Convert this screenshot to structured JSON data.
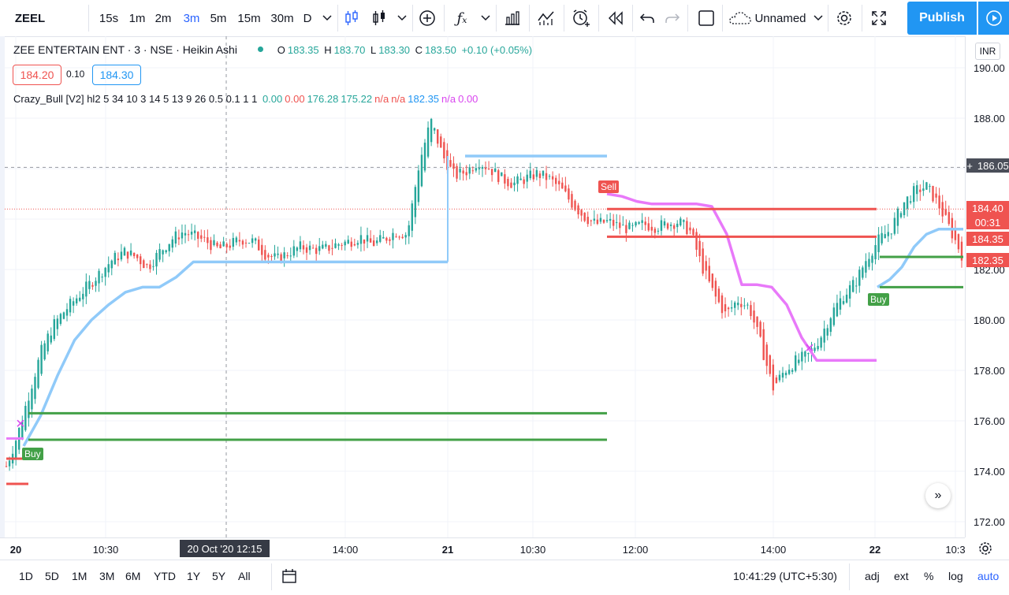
{
  "toolbar": {
    "symbol": "ZEEL",
    "intervals": [
      "15s",
      "1m",
      "2m",
      "3m",
      "5m",
      "15m",
      "30m",
      "D"
    ],
    "active_interval": "3m",
    "layout_name": "Unnamed",
    "publish_label": "Publish",
    "icons": [
      "chevron-down-icon",
      "candles-icon",
      "bar-chart-icon",
      "chevron-down-icon",
      "plus-circle-icon",
      "fx-icon",
      "chevron-down-icon",
      "compare-icon",
      "indicator-icon",
      "alert-icon",
      "replay-icon",
      "undo-icon",
      "redo-icon",
      "fullscreen-box-icon",
      "cloud-icon",
      "gear-icon",
      "expand-icon",
      "play-icon"
    ]
  },
  "legend": {
    "title": "ZEE ENTERTAIN ENT · 3 · NSE · Heikin Ashi",
    "ohlc": [
      {
        "label": "O",
        "value": "183.35"
      },
      {
        "label": "H",
        "value": "183.70"
      },
      {
        "label": "L",
        "value": "183.30"
      },
      {
        "label": "C",
        "value": "183.50"
      }
    ],
    "change": "+0.10 (+0.05%)",
    "bid": "184.20",
    "spread": "0.10",
    "ask": "184.30"
  },
  "indicator": {
    "name": "Crazy_Bull [V2] hl2 5 34 10 3 14 5 13 9 26 0.5 0.1 1 1",
    "values": [
      {
        "v": "0.00",
        "color": "#26a69a"
      },
      {
        "v": "0.00",
        "color": "#ef5350"
      },
      {
        "v": "176.28",
        "color": "#26a69a"
      },
      {
        "v": "175.22",
        "color": "#26a69a"
      },
      {
        "v": "n/a",
        "color": "#ef5350"
      },
      {
        "v": "n/a",
        "color": "#ef5350"
      },
      {
        "v": "182.35",
        "color": "#2196f3"
      },
      {
        "v": "n/a",
        "color": "#d946ef"
      },
      {
        "v": "0.00",
        "color": "#d946ef"
      }
    ]
  },
  "chart_data": {
    "type": "candlestick",
    "ylim": [
      171.2,
      191.0
    ],
    "yticks": [
      "190.00",
      "188.00",
      "186.00",
      "184.00",
      "182.00",
      "180.00",
      "178.00",
      "176.00",
      "174.00",
      "172.00"
    ],
    "currency": "INR",
    "crosshair_price": "186.05",
    "price_tags": [
      {
        "price": 184.4,
        "label": "184.40",
        "color": "#ef5350"
      },
      {
        "price": 184.12,
        "label": "00:31",
        "color": "#ef5350"
      },
      {
        "price": 183.75,
        "label": "184.35",
        "color": "#ef5350"
      },
      {
        "price": 182.35,
        "label": "182.35",
        "color": "#ef5350"
      }
    ],
    "xticks": [
      {
        "label": "20",
        "bold": true
      },
      {
        "label": "10:30",
        "bold": false
      },
      {
        "label": "14:00",
        "bold": false
      },
      {
        "label": "21",
        "bold": true
      },
      {
        "label": "10:30",
        "bold": false
      },
      {
        "label": "12:00",
        "bold": false
      },
      {
        "label": "14:00",
        "bold": false
      },
      {
        "label": "22",
        "bold": true
      },
      {
        "label": "10:3",
        "bold": false
      }
    ],
    "crosshair_time": "20 Oct '20   12:15",
    "signals": [
      {
        "label": "Buy",
        "color": "#43a047"
      },
      {
        "label": "Sell",
        "color": "#ef5350"
      },
      {
        "label": "Buy",
        "color": "#43a047"
      }
    ],
    "close_path": [
      174.2,
      175.5,
      177.2,
      178.8,
      179.8,
      180.4,
      180.9,
      181.4,
      181.9,
      182.4,
      182.7,
      182.5,
      182.1,
      182.7,
      183.2,
      183.5,
      183.3,
      183.1,
      182.8,
      183.0,
      183.2,
      183.1,
      182.6,
      182.4,
      182.7,
      182.9,
      182.8,
      182.8,
      183.0,
      183.1,
      183.3,
      183.0,
      183.2,
      183.5,
      183.4,
      186.2,
      187.9,
      186.5,
      185.7,
      185.9,
      186.3,
      186.0,
      185.6,
      185.4,
      185.6,
      185.8,
      185.6,
      185.2,
      184.6,
      184.1,
      183.8,
      183.9,
      183.7,
      183.6,
      183.8,
      183.7,
      183.8,
      183.9,
      183.5,
      182.1,
      181.0,
      180.2,
      180.8,
      180.5,
      179.0,
      177.3,
      178.0,
      178.4,
      178.6,
      179.3,
      180.3,
      181.0,
      181.5,
      182.5,
      183.2,
      183.6,
      184.6,
      185.1,
      185.3,
      184.6,
      183.6,
      182.6
    ],
    "series": [
      {
        "name": "",
        "color": "#90caf9",
        "values": [
          175.0,
          176.2,
          177.8,
          179.2,
          180.0,
          180.6,
          181.1,
          181.3,
          181.3,
          181.7,
          182.3,
          182.3,
          182.3,
          182.3,
          182.3,
          182.3,
          182.3,
          182.3,
          182.3,
          182.3,
          182.3,
          182.3,
          182.3,
          182.3,
          182.3,
          182.3,
          186.5,
          186.5,
          186.5,
          186.5,
          186.5,
          186.5,
          186.5
        ]
      },
      {
        "name": "",
        "color": "#e879f9",
        "values": [
          185.0,
          184.9,
          184.7,
          184.6,
          184.6,
          184.6,
          184.6,
          184.5,
          183.4,
          181.4,
          181.4,
          181.3,
          180.6,
          179.3,
          178.4,
          178.4,
          178.4,
          178.4,
          178.4
        ]
      }
    ]
  },
  "timebar": {
    "ranges": [
      "1D",
      "5D",
      "1M",
      "3M",
      "6M",
      "YTD",
      "1Y",
      "5Y",
      "All"
    ],
    "clock": "10:41:29 (UTC+5:30)",
    "options": [
      "adj",
      "ext",
      "%",
      "log",
      "auto"
    ]
  }
}
